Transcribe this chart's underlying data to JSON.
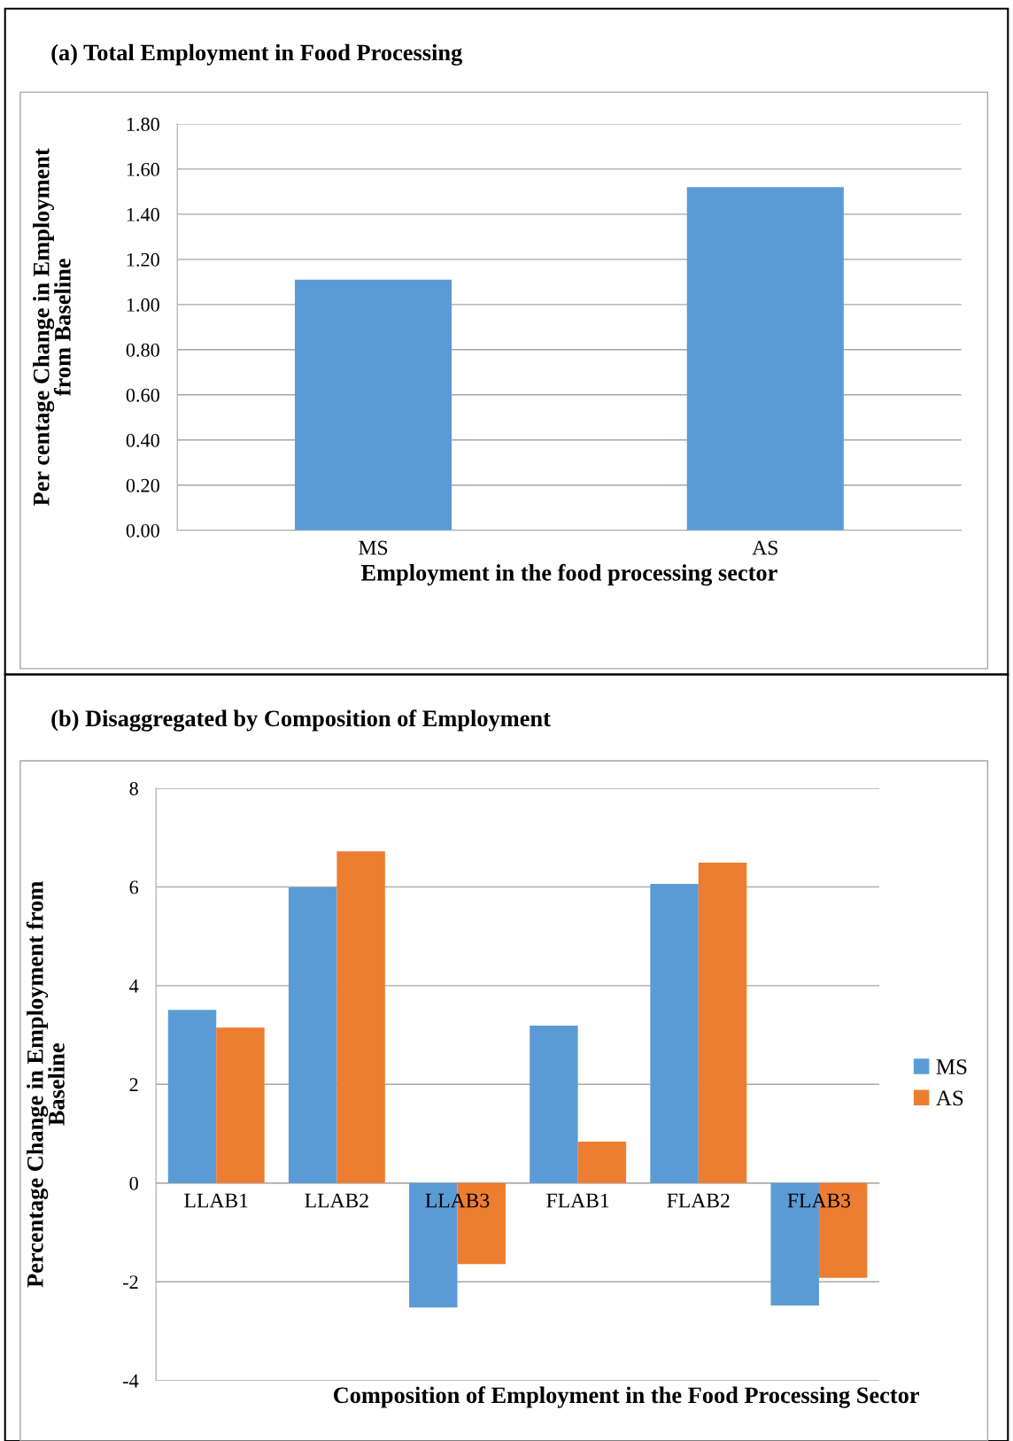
{
  "chart_data": [
    {
      "type": "bar",
      "title": "(a) Total Employment in Food Processing",
      "xlabel": "Employment in the food processing sector",
      "ylabel": "Per centage Change in Employment\nfrom Baseline",
      "categories": [
        "MS",
        "AS"
      ],
      "values": [
        1.11,
        1.52
      ],
      "color": "#5b9bd5",
      "ylim": [
        0,
        1.8
      ],
      "yticks": [
        {
          "value": 0,
          "label": "0.00"
        },
        {
          "value": 0.2,
          "label": "0.20"
        },
        {
          "value": 0.4,
          "label": "0.40"
        },
        {
          "value": 0.6,
          "label": "0.60"
        },
        {
          "value": 0.8,
          "label": "0.80"
        },
        {
          "value": 1.0,
          "label": "1.00"
        },
        {
          "value": 1.2,
          "label": "1.20"
        },
        {
          "value": 1.4,
          "label": "1.40"
        },
        {
          "value": 1.6,
          "label": "1.60"
        },
        {
          "value": 1.8,
          "label": "1.80"
        }
      ],
      "grid": "y"
    },
    {
      "type": "bar",
      "title": "(b) Disaggregated by Composition of Employment",
      "xlabel": "Composition of Employment in the Food Processing Sector",
      "ylabel": "Percentage Change in Employment from\nBaseline",
      "categories": [
        "LLAB1",
        "LLAB2",
        "LLAB3",
        "FLAB1",
        "FLAB2",
        "FLAB3"
      ],
      "series": [
        {
          "name": "MS",
          "color": "#5b9bd5",
          "values": [
            3.51,
            5.99,
            -2.52,
            3.19,
            6.06,
            -2.48
          ]
        },
        {
          "name": "AS",
          "color": "#ed7d31",
          "values": [
            3.15,
            6.72,
            -1.64,
            0.84,
            6.49,
            -1.92
          ]
        }
      ],
      "ylim": [
        -4,
        8
      ],
      "yticks": [
        -4,
        -2,
        0,
        2,
        4,
        6,
        8
      ],
      "grid": "y",
      "legend": "right"
    }
  ]
}
